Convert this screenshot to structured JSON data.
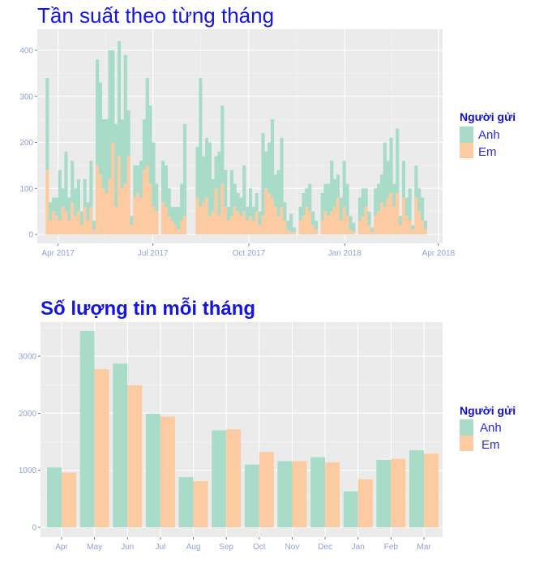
{
  "colors": {
    "Anh": "#a8dcc9",
    "Em": "#fdcba1",
    "title": "#1414e6",
    "panel": "#ebebeb"
  },
  "chart_data": [
    {
      "type": "bar",
      "stacked": true,
      "title": "Tần suất theo từng tháng",
      "xlabel": "",
      "ylabel": "",
      "x_unit": "3-day bins starting 2017-03-20 (day index)",
      "bin_days": 3,
      "xlim_days": [
        -8,
        381
      ],
      "ylim": [
        0,
        440
      ],
      "yticks": [
        0,
        100,
        200,
        300,
        400
      ],
      "xticks": [
        {
          "day": 12,
          "label": "Apr 2017"
        },
        {
          "day": 103,
          "label": "Jul 2017"
        },
        {
          "day": 195,
          "label": "Oct 2017"
        },
        {
          "day": 287,
          "label": "Jan 2018"
        },
        {
          "day": 377,
          "label": "Apr 2018"
        }
      ],
      "legend": {
        "title": "Người gửi",
        "position": "right",
        "entries": [
          "Anh",
          "Em"
        ]
      },
      "series": [
        {
          "name": "Em",
          "values": [
            140,
            30,
            50,
            40,
            30,
            60,
            50,
            30,
            70,
            40,
            50,
            20,
            60,
            30,
            60,
            10,
            150,
            130,
            100,
            90,
            120,
            200,
            60,
            170,
            100,
            110,
            170,
            20,
            80,
            90,
            80,
            140,
            150,
            110,
            60,
            50,
            0,
            70,
            60,
            40,
            30,
            20,
            10,
            30,
            40,
            0,
            0,
            0,
            80,
            60,
            70,
            80,
            40,
            50,
            100,
            40,
            110,
            60,
            30,
            40,
            60,
            50,
            40,
            50,
            30,
            40,
            30,
            50,
            20,
            40,
            100,
            90,
            80,
            60,
            40,
            60,
            30,
            10,
            5,
            5,
            0,
            30,
            40,
            60,
            50,
            20,
            10,
            0,
            30,
            50,
            40,
            50,
            60,
            80,
            30,
            60,
            40,
            10,
            5,
            0,
            30,
            40,
            60,
            20,
            5,
            40,
            50,
            70,
            60,
            80,
            90,
            60,
            90,
            20,
            80,
            40,
            30,
            10,
            80,
            50,
            30,
            10
          ]
        },
        {
          "name": "Anh",
          "values": [
            200,
            40,
            30,
            40,
            110,
            40,
            130,
            50,
            90,
            60,
            70,
            30,
            60,
            40,
            100,
            20,
            230,
            200,
            150,
            160,
            280,
            200,
            180,
            250,
            150,
            280,
            100,
            20,
            70,
            60,
            80,
            110,
            190,
            170,
            140,
            60,
            0,
            90,
            90,
            60,
            30,
            40,
            50,
            80,
            200,
            0,
            0,
            0,
            110,
            280,
            100,
            130,
            160,
            70,
            70,
            140,
            170,
            80,
            30,
            100,
            50,
            40,
            40,
            100,
            30,
            60,
            30,
            40,
            30,
            180,
            80,
            110,
            170,
            70,
            100,
            150,
            40,
            20,
            40,
            10,
            0,
            30,
            50,
            40,
            60,
            30,
            20,
            0,
            60,
            60,
            70,
            110,
            60,
            50,
            50,
            100,
            70,
            30,
            20,
            0,
            50,
            60,
            40,
            30,
            10,
            60,
            60,
            60,
            140,
            80,
            120,
            50,
            140,
            20,
            80,
            40,
            70,
            10,
            70,
            50,
            50,
            20
          ]
        }
      ]
    },
    {
      "type": "bar",
      "grouped": true,
      "title": "Số lượng tin mỗi tháng",
      "xlabel": "",
      "ylabel": "",
      "categories": [
        "Apr",
        "May",
        "Jun",
        "Jul",
        "Aug",
        "Sep",
        "Oct",
        "Nov",
        "Dec",
        "Jan",
        "Feb",
        "Mar"
      ],
      "ylim": [
        -170,
        3620
      ],
      "yticks": [
        0,
        1000,
        2000,
        3000
      ],
      "legend": {
        "title": "Người gửi",
        "position": "right",
        "entries": [
          "Anh",
          "Em"
        ]
      },
      "series": [
        {
          "name": "Anh",
          "values": [
            1050,
            3440,
            2870,
            1990,
            880,
            1700,
            1100,
            1160,
            1230,
            630,
            1180,
            1350
          ]
        },
        {
          "name": "Em",
          "values": [
            960,
            2770,
            2490,
            1940,
            810,
            1720,
            1320,
            1160,
            1140,
            840,
            1200,
            1290
          ]
        }
      ]
    }
  ]
}
